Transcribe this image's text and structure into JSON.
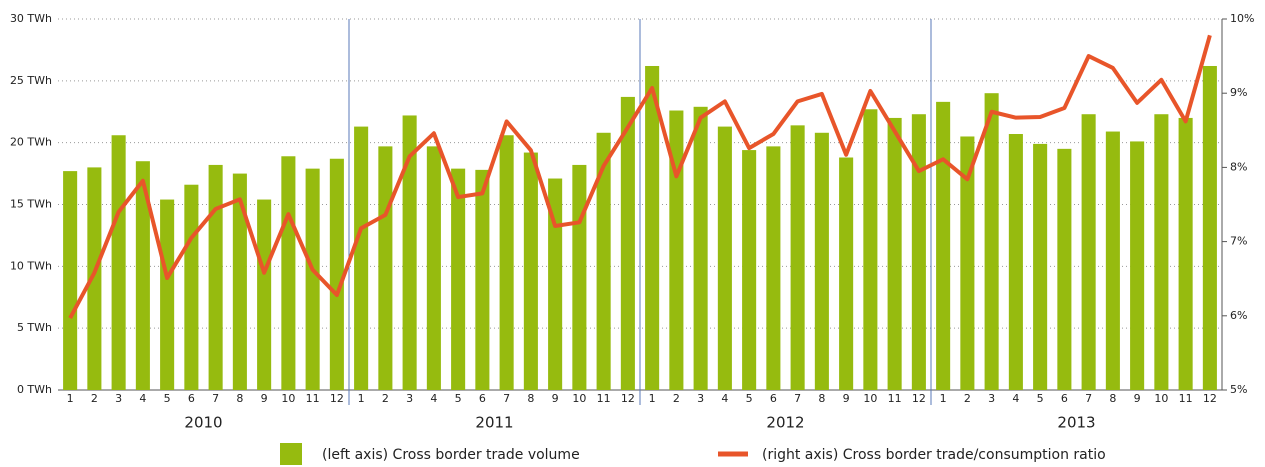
{
  "chart_data": {
    "type": "bar_line",
    "categories": [
      1,
      2,
      3,
      4,
      5,
      6,
      7,
      8,
      9,
      10,
      11,
      12,
      1,
      2,
      3,
      4,
      5,
      6,
      7,
      8,
      9,
      10,
      11,
      12,
      1,
      2,
      3,
      4,
      5,
      6,
      7,
      8,
      9,
      10,
      11,
      12,
      1,
      2,
      3,
      4,
      5,
      6,
      7,
      8,
      9,
      10,
      11,
      12
    ],
    "years": [
      "2010",
      "2011",
      "2012",
      "2013"
    ],
    "series": [
      {
        "name": "(left axis) Cross border trade volume",
        "color": "#96bb0f",
        "type": "bar",
        "values": [
          17.7,
          18.0,
          20.6,
          18.5,
          15.4,
          16.6,
          18.2,
          17.5,
          15.4,
          18.9,
          17.9,
          18.7,
          21.3,
          19.7,
          22.2,
          19.7,
          17.9,
          17.8,
          20.6,
          19.2,
          17.1,
          18.2,
          20.8,
          23.7,
          26.2,
          22.6,
          22.9,
          21.3,
          19.4,
          19.7,
          21.4,
          20.8,
          18.8,
          22.7,
          22.0,
          22.3,
          23.3,
          20.5,
          24.0,
          20.7,
          19.9,
          19.5,
          22.3,
          20.9,
          20.1,
          22.3,
          22.0,
          26.2
        ]
      },
      {
        "name": "(right axis) Cross border trade/consumption ratio",
        "color": "#e8552a",
        "type": "line",
        "axis": "y2",
        "values": [
          5.97,
          6.58,
          7.4,
          7.82,
          6.51,
          7.05,
          7.44,
          7.57,
          6.58,
          7.37,
          6.62,
          6.28,
          7.18,
          7.36,
          8.15,
          8.46,
          7.6,
          7.65,
          8.62,
          8.23,
          7.21,
          7.26,
          8.02,
          8.54,
          9.07,
          7.88,
          8.67,
          8.89,
          8.26,
          8.45,
          8.89,
          8.99,
          8.17,
          9.03,
          8.49,
          7.95,
          8.11,
          7.84,
          8.75,
          8.67,
          8.68,
          8.8,
          9.5,
          9.34,
          8.87,
          9.18,
          8.62,
          9.78
        ]
      }
    ],
    "ylim": [
      0,
      30
    ],
    "yticks": [
      {
        "value": 0,
        "label": "0 TWh"
      },
      {
        "value": 5,
        "label": "5 TWh"
      },
      {
        "value": 10,
        "label": "10 TWh"
      },
      {
        "value": 15,
        "label": "15 TWh"
      },
      {
        "value": 20,
        "label": "20 TWh"
      },
      {
        "value": 25,
        "label": "25 TWh"
      },
      {
        "value": 30,
        "label": "30 TWh"
      }
    ],
    "y2lim": [
      5,
      10
    ],
    "y2ticks": [
      {
        "value": 5,
        "label": "5%"
      },
      {
        "value": 6,
        "label": "6%"
      },
      {
        "value": 7,
        "label": "7%"
      },
      {
        "value": 8,
        "label": "8%"
      },
      {
        "value": 9,
        "label": "9%"
      },
      {
        "value": 10,
        "label": "10%"
      }
    ],
    "grid": true,
    "legend": "bottom"
  }
}
